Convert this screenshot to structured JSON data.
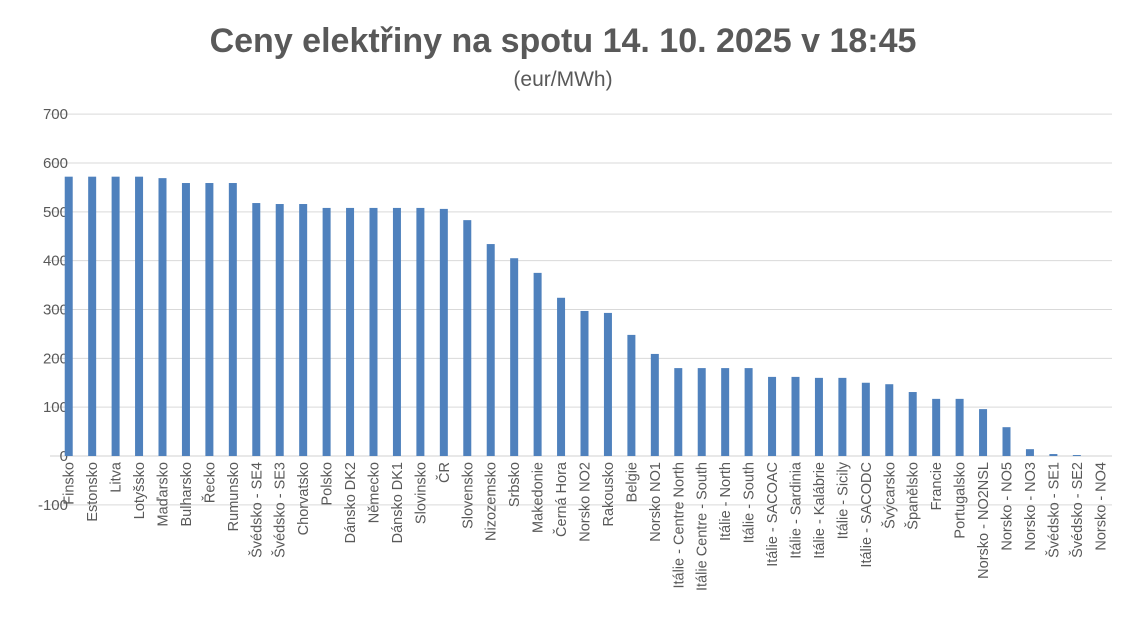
{
  "chart_data": {
    "type": "bar",
    "title": "Ceny elektřiny na spotu 14. 10. 2025 v 18:45",
    "subtitle": "(eur/MWh)",
    "xlabel": "",
    "ylabel": "",
    "ylim": [
      -100,
      700
    ],
    "yticks": [
      -100,
      0,
      100,
      200,
      300,
      400,
      500,
      600,
      700
    ],
    "grid": true,
    "bar_color": "#4f81bd",
    "categories": [
      "Finsko",
      "Estonsko",
      "Litva",
      "Lotyšsko",
      "Maďarsko",
      "Bulharsko",
      "Řecko",
      "Rumunsko",
      "Švédsko - SE4",
      "Švédsko - SE3",
      "Chorvatsko",
      "Polsko",
      "Dánsko DK2",
      "Německo",
      "Dánsko DK1",
      "Slovinsko",
      "ČR",
      "Slovensko",
      "Nizozemsko",
      "Srbsko",
      "Makedonie",
      "Černá Hora",
      "Norsko NO2",
      "Rakousko",
      "Belgie",
      "Norsko NO1",
      "Itálie - Centre North",
      "Itálie Centre - South",
      "Itálie - North",
      "Itálie - South",
      "Itálie - SACOAC",
      "Itálie - Sardinia",
      "Itálie - Kalábrie",
      "Itálie - Sicily",
      "Itálie - SACODC",
      "Švýcarsko",
      "Španělsko",
      "Francie",
      "Portugalsko",
      "Norsko - NO2NSL",
      "Norsko - NO5",
      "Norsko - NO3",
      "Švédsko - SE1",
      "Švédsko - SE2",
      "Norsko - NO4"
    ],
    "values": [
      572,
      572,
      572,
      572,
      569,
      559,
      559,
      559,
      518,
      516,
      516,
      508,
      508,
      508,
      508,
      508,
      506,
      483,
      434,
      405,
      375,
      324,
      297,
      293,
      248,
      209,
      180,
      180,
      180,
      180,
      162,
      162,
      160,
      160,
      150,
      147,
      131,
      117,
      117,
      96,
      59,
      14,
      4,
      2,
      0
    ]
  }
}
